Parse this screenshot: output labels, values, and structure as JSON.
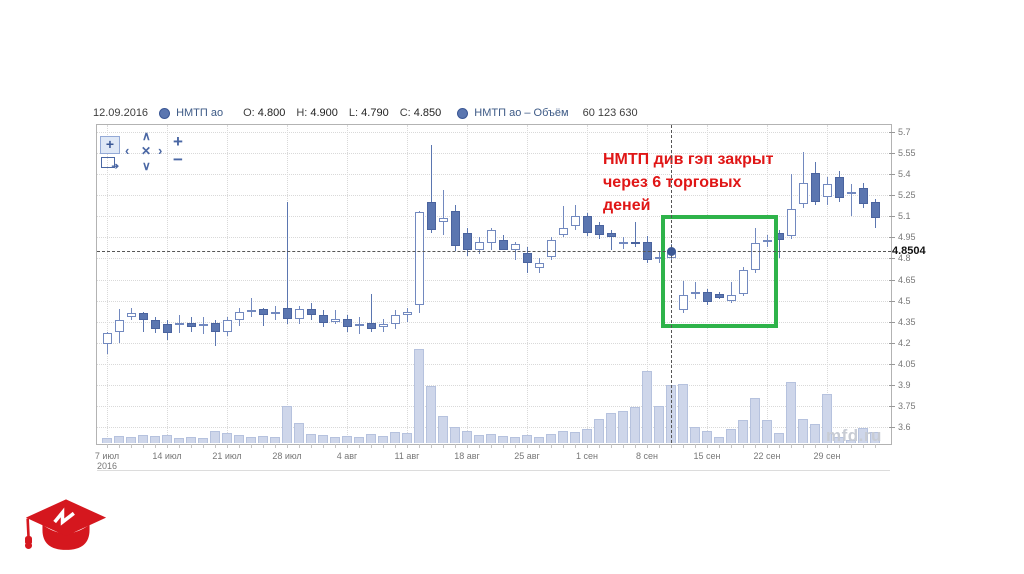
{
  "header": {
    "date": "12.09.2016",
    "series1": "НМТП ао",
    "o_label": "O:",
    "o_value": "4.800",
    "h_label": "H:",
    "h_value": "4.900",
    "l_label": "L:",
    "l_value": "4.790",
    "c_label": "C:",
    "c_value": "4.850",
    "series2": "НМТП ао – Объём",
    "volume_value": "60 123 630"
  },
  "toolbar": {
    "buttons": [
      {
        "name": "crosshair-tool",
        "glyph": "+"
      },
      {
        "name": "snapshot-tool",
        "glyph": "➔"
      },
      {
        "name": "pan-up",
        "glyph": "∧"
      },
      {
        "name": "pan-left",
        "glyph": "‹"
      },
      {
        "name": "reset-view",
        "glyph": "✕"
      },
      {
        "name": "pan-right",
        "glyph": "›"
      },
      {
        "name": "pan-down",
        "glyph": "∨"
      },
      {
        "name": "zoom-in",
        "glyph": "+"
      },
      {
        "name": "zoom-out",
        "glyph": "−"
      }
    ]
  },
  "annotation": {
    "line1": "НМТП див гэп закрыт",
    "line2": "через 6 торговых",
    "line3": "деней",
    "color": "#e01616"
  },
  "watermark": "mfd.ru",
  "colors": {
    "candle_up_fill": "#ffffff",
    "candle_up_border": "#7289bf",
    "candle_down_fill": "#5b76b0",
    "candle_down_border": "#4a639e",
    "volume_fill": "#ced6ea",
    "volume_border": "#b6c2de",
    "highlight_green": "#2eb34a",
    "annotation_red": "#e01616",
    "logo_red": "#d5171e",
    "grid": "#d9d9d9"
  },
  "chart_data": {
    "type": "candlestick_volume",
    "title": "НМТП ао",
    "legend": [
      "НМТП ао",
      "НМТП ао – Объём"
    ],
    "y_axis": {
      "ticks": [
        5.7,
        5.55,
        5.4,
        5.25,
        5.1,
        4.95,
        4.8,
        4.65,
        4.5,
        4.35,
        4.2,
        4.05,
        3.9,
        3.75,
        3.6
      ],
      "range": [
        3.52,
        5.75
      ]
    },
    "x_axis": {
      "labels": [
        {
          "i": 0,
          "t": "7 июл",
          "sub": "2016"
        },
        {
          "i": 5,
          "t": "14 июл"
        },
        {
          "i": 10,
          "t": "21 июл"
        },
        {
          "i": 15,
          "t": "28 июл"
        },
        {
          "i": 20,
          "t": "4 авг"
        },
        {
          "i": 25,
          "t": "11 авг"
        },
        {
          "i": 30,
          "t": "18 авг"
        },
        {
          "i": 35,
          "t": "25 авг"
        },
        {
          "i": 40,
          "t": "1 сен"
        },
        {
          "i": 45,
          "t": "8 сен"
        },
        {
          "i": 50,
          "t": "15 сен"
        },
        {
          "i": 55,
          "t": "22 сен"
        },
        {
          "i": 60,
          "t": "29 сен"
        }
      ]
    },
    "volume_unit": "millions_approx",
    "candles": [
      [
        4.19,
        4.28,
        4.12,
        4.27,
        5
      ],
      [
        4.28,
        4.44,
        4.2,
        4.36,
        7
      ],
      [
        4.38,
        4.45,
        4.36,
        4.41,
        6
      ],
      [
        4.41,
        4.42,
        4.28,
        4.36,
        8
      ],
      [
        4.36,
        4.38,
        4.27,
        4.3,
        7
      ],
      [
        4.33,
        4.36,
        4.22,
        4.27,
        8
      ],
      [
        4.33,
        4.4,
        4.27,
        4.34,
        5
      ],
      [
        4.34,
        4.38,
        4.28,
        4.31,
        6
      ],
      [
        4.32,
        4.38,
        4.26,
        4.33,
        5
      ],
      [
        4.34,
        4.36,
        4.18,
        4.28,
        12
      ],
      [
        4.28,
        4.38,
        4.25,
        4.36,
        10
      ],
      [
        4.36,
        4.45,
        4.32,
        4.42,
        8
      ],
      [
        4.42,
        4.52,
        4.38,
        4.43,
        6
      ],
      [
        4.44,
        4.45,
        4.32,
        4.4,
        7
      ],
      [
        4.41,
        4.46,
        4.36,
        4.42,
        6
      ],
      [
        4.45,
        5.2,
        4.33,
        4.37,
        38
      ],
      [
        4.37,
        4.46,
        4.33,
        4.44,
        21
      ],
      [
        4.44,
        4.48,
        4.36,
        4.4,
        9
      ],
      [
        4.4,
        4.43,
        4.31,
        4.34,
        8
      ],
      [
        4.35,
        4.43,
        4.33,
        4.37,
        6
      ],
      [
        4.37,
        4.4,
        4.28,
        4.31,
        7
      ],
      [
        4.32,
        4.38,
        4.26,
        4.33,
        6
      ],
      [
        4.34,
        4.55,
        4.28,
        4.3,
        9
      ],
      [
        4.31,
        4.37,
        4.28,
        4.33,
        7
      ],
      [
        4.33,
        4.43,
        4.3,
        4.4,
        11
      ],
      [
        4.4,
        4.45,
        4.35,
        4.42,
        10
      ],
      [
        4.47,
        5.14,
        4.41,
        5.13,
        97
      ],
      [
        5.2,
        5.61,
        4.98,
        5.0,
        59
      ],
      [
        5.06,
        5.29,
        4.97,
        5.09,
        28
      ],
      [
        5.14,
        5.18,
        4.85,
        4.89,
        17
      ],
      [
        4.98,
        5.02,
        4.82,
        4.86,
        12
      ],
      [
        4.86,
        4.95,
        4.83,
        4.92,
        8
      ],
      [
        4.91,
        5.02,
        4.86,
        5.0,
        9
      ],
      [
        4.93,
        4.97,
        4.86,
        4.86,
        7
      ],
      [
        4.86,
        4.92,
        4.79,
        4.9,
        6
      ],
      [
        4.84,
        4.88,
        4.7,
        4.77,
        8
      ],
      [
        4.73,
        4.8,
        4.7,
        4.77,
        6
      ],
      [
        4.81,
        4.95,
        4.79,
        4.93,
        9
      ],
      [
        4.97,
        5.17,
        4.95,
        5.02,
        12
      ],
      [
        5.03,
        5.18,
        5.0,
        5.1,
        11
      ],
      [
        5.1,
        5.12,
        4.96,
        4.98,
        14
      ],
      [
        5.04,
        5.06,
        4.94,
        4.97,
        25
      ],
      [
        4.98,
        5.0,
        4.86,
        4.95,
        31
      ],
      [
        4.91,
        4.95,
        4.87,
        4.92,
        33
      ],
      [
        4.92,
        5.06,
        4.88,
        4.91,
        37
      ],
      [
        4.92,
        4.96,
        4.77,
        4.79,
        74
      ],
      [
        4.81,
        4.85,
        4.77,
        4.81,
        38
      ],
      [
        4.8,
        4.9,
        4.79,
        4.85,
        60.1
      ],
      [
        4.43,
        4.64,
        4.41,
        4.54,
        61
      ],
      [
        4.55,
        4.63,
        4.51,
        4.56,
        16
      ],
      [
        4.56,
        4.58,
        4.47,
        4.49,
        12
      ],
      [
        4.55,
        4.56,
        4.51,
        4.52,
        6
      ],
      [
        4.5,
        4.63,
        4.48,
        4.54,
        14
      ],
      [
        4.55,
        4.74,
        4.53,
        4.72,
        24
      ],
      [
        4.72,
        5.02,
        4.7,
        4.91,
        46
      ],
      [
        4.92,
        4.97,
        4.88,
        4.93,
        24
      ],
      [
        4.98,
        5.0,
        4.8,
        4.93,
        10
      ],
      [
        4.96,
        5.4,
        4.94,
        5.15,
        63
      ],
      [
        5.19,
        5.56,
        5.16,
        5.34,
        25
      ],
      [
        5.41,
        5.49,
        5.18,
        5.2,
        20
      ],
      [
        5.24,
        5.38,
        5.18,
        5.33,
        51
      ],
      [
        5.38,
        5.42,
        5.2,
        5.23,
        6
      ],
      [
        5.26,
        5.33,
        5.1,
        5.27,
        3
      ],
      [
        5.3,
        5.34,
        5.16,
        5.19,
        15
      ],
      [
        5.2,
        5.22,
        5.02,
        5.09,
        11
      ]
    ],
    "selected": {
      "index": 47,
      "date": "12.09.2016",
      "o": 4.8,
      "h": 4.9,
      "l": 4.79,
      "c": 4.85,
      "volume": "60 123 630",
      "price": 4.8504,
      "price_label": "4.8504"
    },
    "highlight_box": {
      "from_index": 46.2,
      "to_index": 55.3,
      "price_top": 5.11,
      "price_bottom": 4.36
    }
  }
}
